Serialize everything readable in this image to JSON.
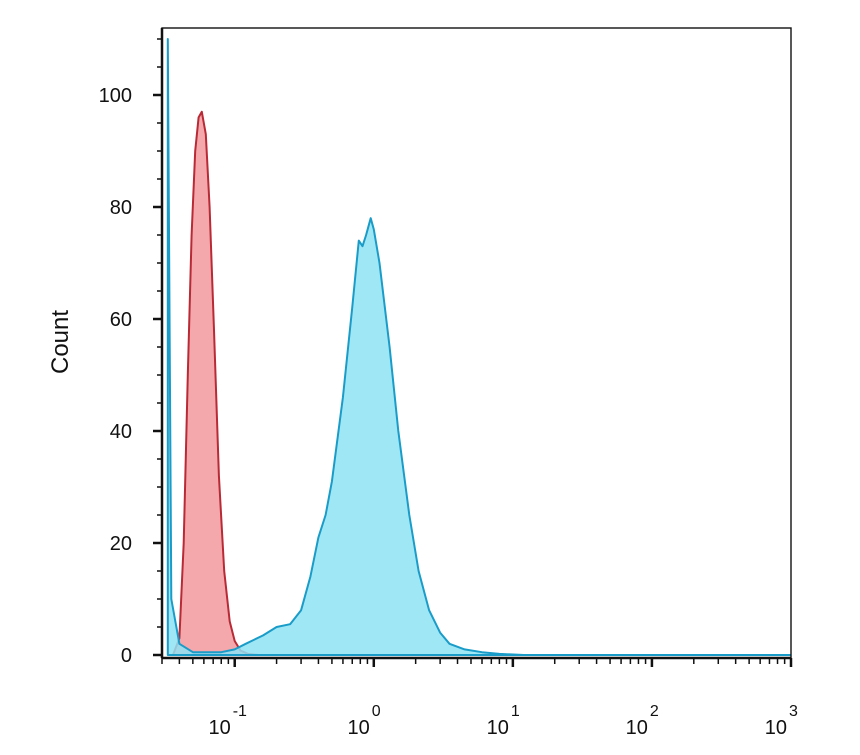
{
  "chart_data": {
    "type": "area",
    "title": "",
    "xlabel": "",
    "ylabel": "Count",
    "x_scale": "log",
    "xlim": [
      0.03,
      1000
    ],
    "ylim": [
      0,
      110
    ],
    "grid": false,
    "legend": "none",
    "y_ticks": [
      0,
      20,
      40,
      60,
      80,
      100
    ],
    "x_ticks": [
      {
        "value": 0.1,
        "base": "10",
        "exp": "-1"
      },
      {
        "value": 1,
        "base": "10",
        "exp": "0"
      },
      {
        "value": 10,
        "base": "10",
        "exp": "1"
      },
      {
        "value": 100,
        "base": "10",
        "exp": "2"
      },
      {
        "value": 1000,
        "base": "10",
        "exp": "3"
      }
    ],
    "series": [
      {
        "color": "#f4a3a8",
        "stroke": "#b82a35",
        "points": [
          [
            0.036,
            0
          ],
          [
            0.04,
            3
          ],
          [
            0.043,
            20
          ],
          [
            0.046,
            50
          ],
          [
            0.049,
            75
          ],
          [
            0.052,
            90
          ],
          [
            0.055,
            96
          ],
          [
            0.058,
            97
          ],
          [
            0.062,
            93
          ],
          [
            0.066,
            80
          ],
          [
            0.071,
            58
          ],
          [
            0.077,
            32
          ],
          [
            0.084,
            15
          ],
          [
            0.092,
            6
          ],
          [
            0.1,
            2.5
          ],
          [
            0.11,
            0.8
          ],
          [
            0.125,
            0.2
          ],
          [
            0.15,
            0
          ],
          [
            1000,
            0
          ]
        ]
      },
      {
        "color": "#8fe3f5",
        "stroke": "#1a9cc8",
        "points": [
          [
            0.033,
            110
          ],
          [
            0.035,
            10
          ],
          [
            0.04,
            2
          ],
          [
            0.05,
            0.5
          ],
          [
            0.08,
            0.5
          ],
          [
            0.1,
            1
          ],
          [
            0.12,
            2
          ],
          [
            0.16,
            3.5
          ],
          [
            0.2,
            5
          ],
          [
            0.25,
            5.5
          ],
          [
            0.3,
            8
          ],
          [
            0.35,
            14
          ],
          [
            0.4,
            21
          ],
          [
            0.45,
            25
          ],
          [
            0.5,
            31
          ],
          [
            0.6,
            46
          ],
          [
            0.7,
            62
          ],
          [
            0.78,
            74
          ],
          [
            0.83,
            73
          ],
          [
            0.88,
            75
          ],
          [
            0.95,
            78
          ],
          [
            1.0,
            76
          ],
          [
            1.1,
            70
          ],
          [
            1.3,
            55
          ],
          [
            1.5,
            40
          ],
          [
            1.8,
            25
          ],
          [
            2.1,
            15
          ],
          [
            2.5,
            8
          ],
          [
            3.0,
            4
          ],
          [
            3.5,
            2
          ],
          [
            4.5,
            1
          ],
          [
            6.0,
            0.5
          ],
          [
            8.0,
            0.2
          ],
          [
            12.0,
            0
          ],
          [
            1000,
            0
          ]
        ]
      }
    ]
  }
}
